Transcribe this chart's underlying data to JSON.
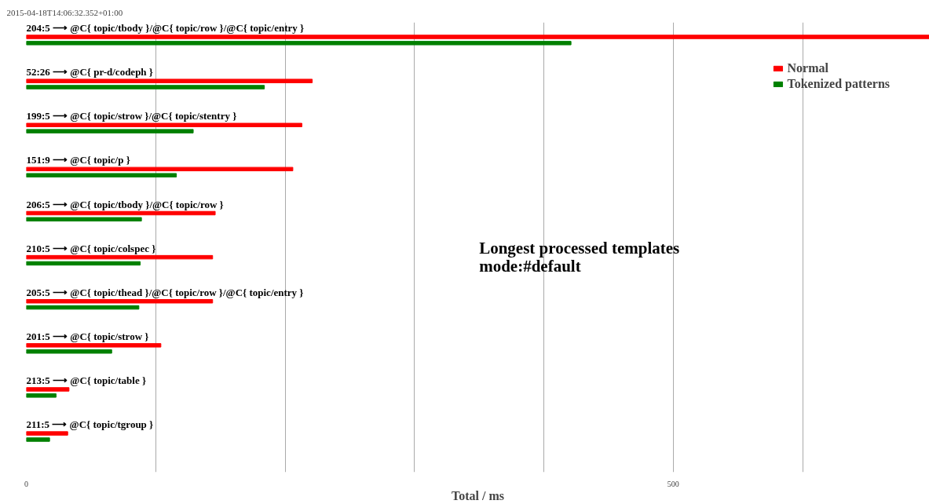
{
  "chart_data": {
    "type": "bar",
    "orientation": "horizontal",
    "title": "Longest processed templates\nmode:#default",
    "xlabel": "Total / ms",
    "annotations": [
      "2015-04-18T14:06:32.352+01:00"
    ],
    "categories": [
      "204:5 ⟶ @C{ topic/tbody }/@C{ topic/row }/@C{ topic/entry }",
      "52:26 ⟶ @C{ pr-d/codeph }",
      "199:5 ⟶ @C{ topic/strow }/@C{ topic/stentry }",
      "151:9 ⟶ @C{ topic/p }",
      "206:5 ⟶ @C{ topic/tbody }/@C{ topic/row }",
      "210:5 ⟶ @C{ topic/colspec }",
      "205:5 ⟶ @C{ topic/thead }/@C{ topic/row }/@C{ topic/entry }",
      "201:5 ⟶ @C{ topic/strow }",
      "213:5 ⟶ @C{ topic/table }",
      "211:5 ⟶ @C{ topic/tgroup }"
    ],
    "series": [
      {
        "name": "Normal",
        "color": "#ff0000",
        "values": [
          698,
          221,
          213,
          206,
          146,
          144,
          144,
          104,
          33,
          32
        ]
      },
      {
        "name": "Tokenized patterns",
        "color": "#008000",
        "values": [
          421,
          184,
          129,
          116,
          89,
          88,
          87,
          66,
          23,
          18
        ]
      }
    ],
    "xlim": [
      0,
      698
    ],
    "xticks": [
      0,
      {
        "value": 100,
        "label": null
      },
      {
        "value": 200,
        "label": null
      },
      {
        "value": 300,
        "label": null
      },
      {
        "value": 400,
        "label": null
      },
      500,
      {
        "value": 600,
        "label": null
      }
    ],
    "grid": "x",
    "legend": "top right"
  }
}
